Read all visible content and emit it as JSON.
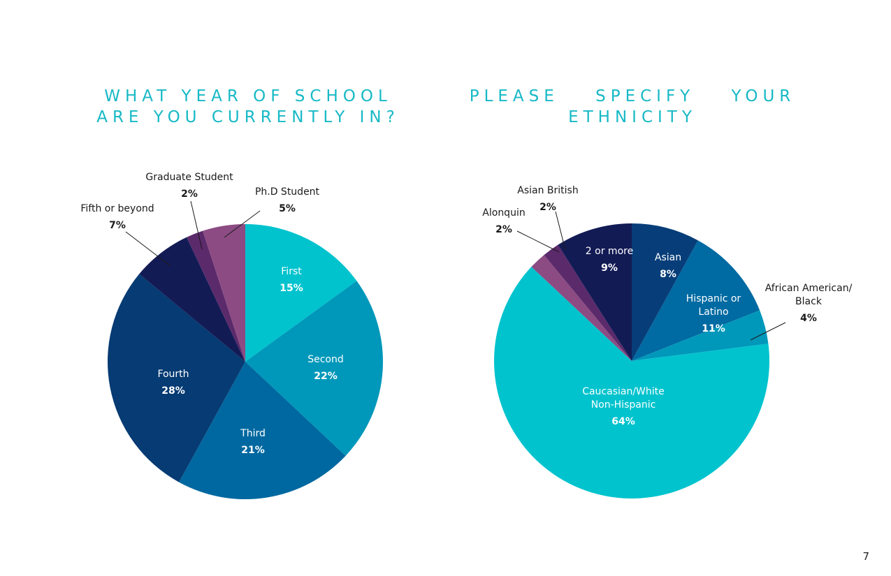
{
  "page": {
    "number": "7"
  },
  "chart_data": [
    {
      "type": "pie",
      "title": [
        "WHAT YEAR OF SCHOOL",
        "ARE YOU CURRENTLY IN?"
      ],
      "slices": [
        {
          "label": "First",
          "value": 15,
          "display": "15%",
          "color": "#00C3CE",
          "label_placement": "inside"
        },
        {
          "label": "Second",
          "value": 22,
          "display": "22%",
          "color": "#0098BA",
          "label_placement": "inside"
        },
        {
          "label": "Third",
          "value": 21,
          "display": "21%",
          "color": "#0068A0",
          "label_placement": "inside"
        },
        {
          "label": "Fourth",
          "value": 28,
          "display": "28%",
          "color": "#063B73",
          "label_placement": "inside"
        },
        {
          "label": "Fifth or beyond",
          "value": 7,
          "display": "7%",
          "color": "#131B55",
          "label_placement": "outside"
        },
        {
          "label": "Graduate Student",
          "value": 2,
          "display": "2%",
          "color": "#5B2A6B",
          "label_placement": "outside"
        },
        {
          "label": "Ph.D Student",
          "value": 5,
          "display": "5%",
          "color": "#8C4C83",
          "label_placement": "outside"
        }
      ]
    },
    {
      "type": "pie",
      "title": [
        "PLEASE SPECIFY YOUR",
        "ETHNICITY"
      ],
      "slices": [
        {
          "label": "Asian",
          "value": 8,
          "display": "8%",
          "color": "#073E79",
          "label_placement": "inside"
        },
        {
          "label": "Hispanic or Latino",
          "value": 11,
          "display": "11%",
          "color": "#006AA2",
          "label_placement": "inside"
        },
        {
          "label": "African American/ Black",
          "value": 4,
          "display": "4%",
          "color": "#0098BA",
          "label_placement": "outside"
        },
        {
          "label": "Caucasian/White Non-Hispanic",
          "value": 64,
          "display": "64%",
          "color": "#00C3CE",
          "label_placement": "inside"
        },
        {
          "label": "Alonquin",
          "value": 2,
          "display": "2%",
          "color": "#8C4C83",
          "label_placement": "outside"
        },
        {
          "label": "Asian British",
          "value": 2,
          "display": "2%",
          "color": "#5B2A6B",
          "label_placement": "outside"
        },
        {
          "label": "2 or more",
          "value": 9,
          "display": "9%",
          "color": "#131B55",
          "label_placement": "inside"
        }
      ]
    }
  ]
}
